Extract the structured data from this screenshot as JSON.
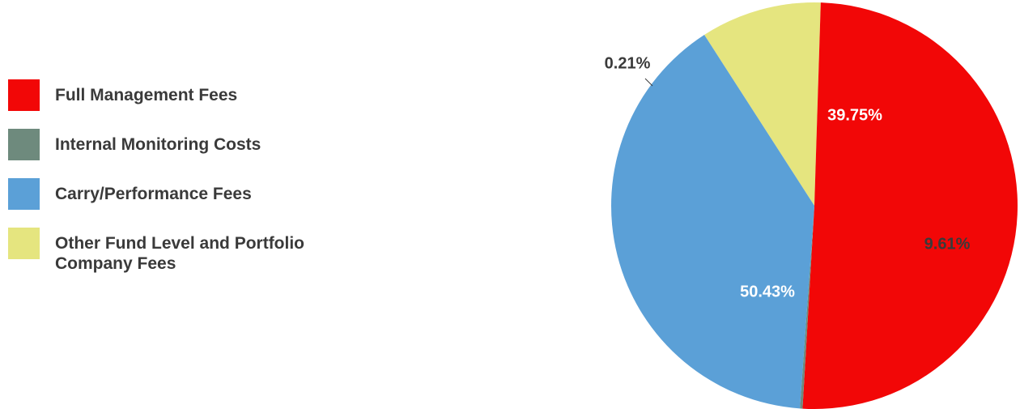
{
  "chart_data": {
    "type": "pie",
    "title": "",
    "legend_position": "left",
    "slices": [
      {
        "label": "Full Management Fees",
        "value": 50.43,
        "display": "50.43%",
        "color": "#f20707",
        "label_color": "#ffffff"
      },
      {
        "label": "Internal Monitoring Costs",
        "value": 0.21,
        "display": "0.21%",
        "color": "#6e8a7d",
        "label_color": "#3a3a3a"
      },
      {
        "label": "Carry/Performance Fees",
        "value": 39.75,
        "display": "39.75%",
        "color": "#5ba0d7",
        "label_color": "#ffffff"
      },
      {
        "label": "Other Fund Level and Portfolio Company Fees",
        "value": 9.61,
        "display": "9.61%",
        "color": "#e5e57f",
        "label_color": "#3a3a3a"
      }
    ]
  }
}
